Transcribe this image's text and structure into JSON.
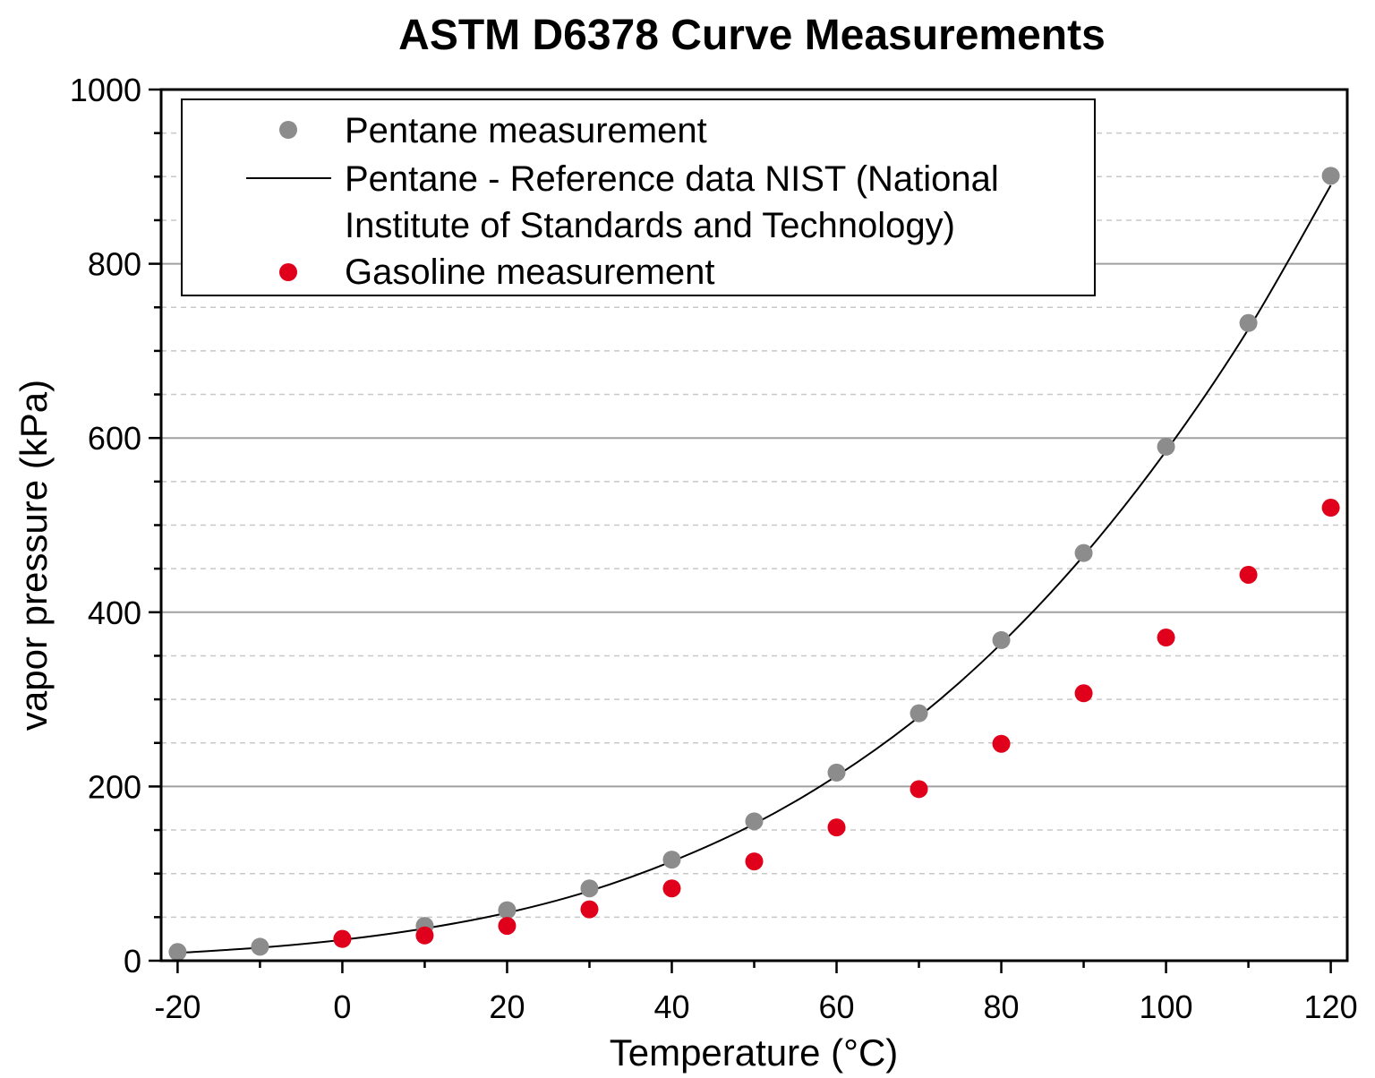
{
  "chart_data": {
    "type": "scatter",
    "title": "ASTM D6378 Curve Measurements",
    "xlabel": "Temperature (°C)",
    "ylabel": "vapor pressure (kPa)",
    "xlim": [
      -22,
      122
    ],
    "ylim": [
      0,
      1000
    ],
    "xticks": [
      -20,
      0,
      20,
      40,
      60,
      80,
      100,
      120
    ],
    "yticks": [
      0,
      200,
      400,
      600,
      800,
      1000
    ],
    "grid": {
      "major_y": true,
      "minor_y_dashed": true
    },
    "legend_placement": "top-left",
    "series": [
      {
        "name": "Pentane measurement",
        "kind": "scatter",
        "color": "#8c8c8c",
        "x": [
          -20,
          -10,
          0,
          10,
          20,
          30,
          40,
          50,
          60,
          70,
          80,
          90,
          100,
          110,
          120
        ],
        "y": [
          10,
          16,
          25,
          40,
          58,
          83,
          116,
          160,
          216,
          284,
          368,
          468,
          590,
          732,
          901
        ]
      },
      {
        "name": "Pentane - Reference data NIST (National Institute of Standards and Technology)",
        "legend_lines": [
          "Pentane - Reference data NIST (National",
          "Institute of Standards and Technology)"
        ],
        "kind": "line",
        "color": "#000000",
        "x": [
          -20,
          -10,
          0,
          10,
          20,
          30,
          40,
          50,
          60,
          70,
          80,
          90,
          100,
          110,
          120
        ],
        "y": [
          9,
          15,
          24,
          37,
          55,
          80,
          114,
          157,
          212,
          280,
          364,
          465,
          585,
          725,
          890
        ]
      },
      {
        "name": "Gasoline measurement",
        "kind": "scatter",
        "color": "#e0001b",
        "x": [
          0,
          10,
          20,
          30,
          40,
          50,
          60,
          70,
          80,
          90,
          100,
          110,
          120
        ],
        "y": [
          25,
          29,
          40,
          59,
          83,
          114,
          153,
          197,
          249,
          307,
          371,
          443,
          520
        ]
      }
    ]
  }
}
